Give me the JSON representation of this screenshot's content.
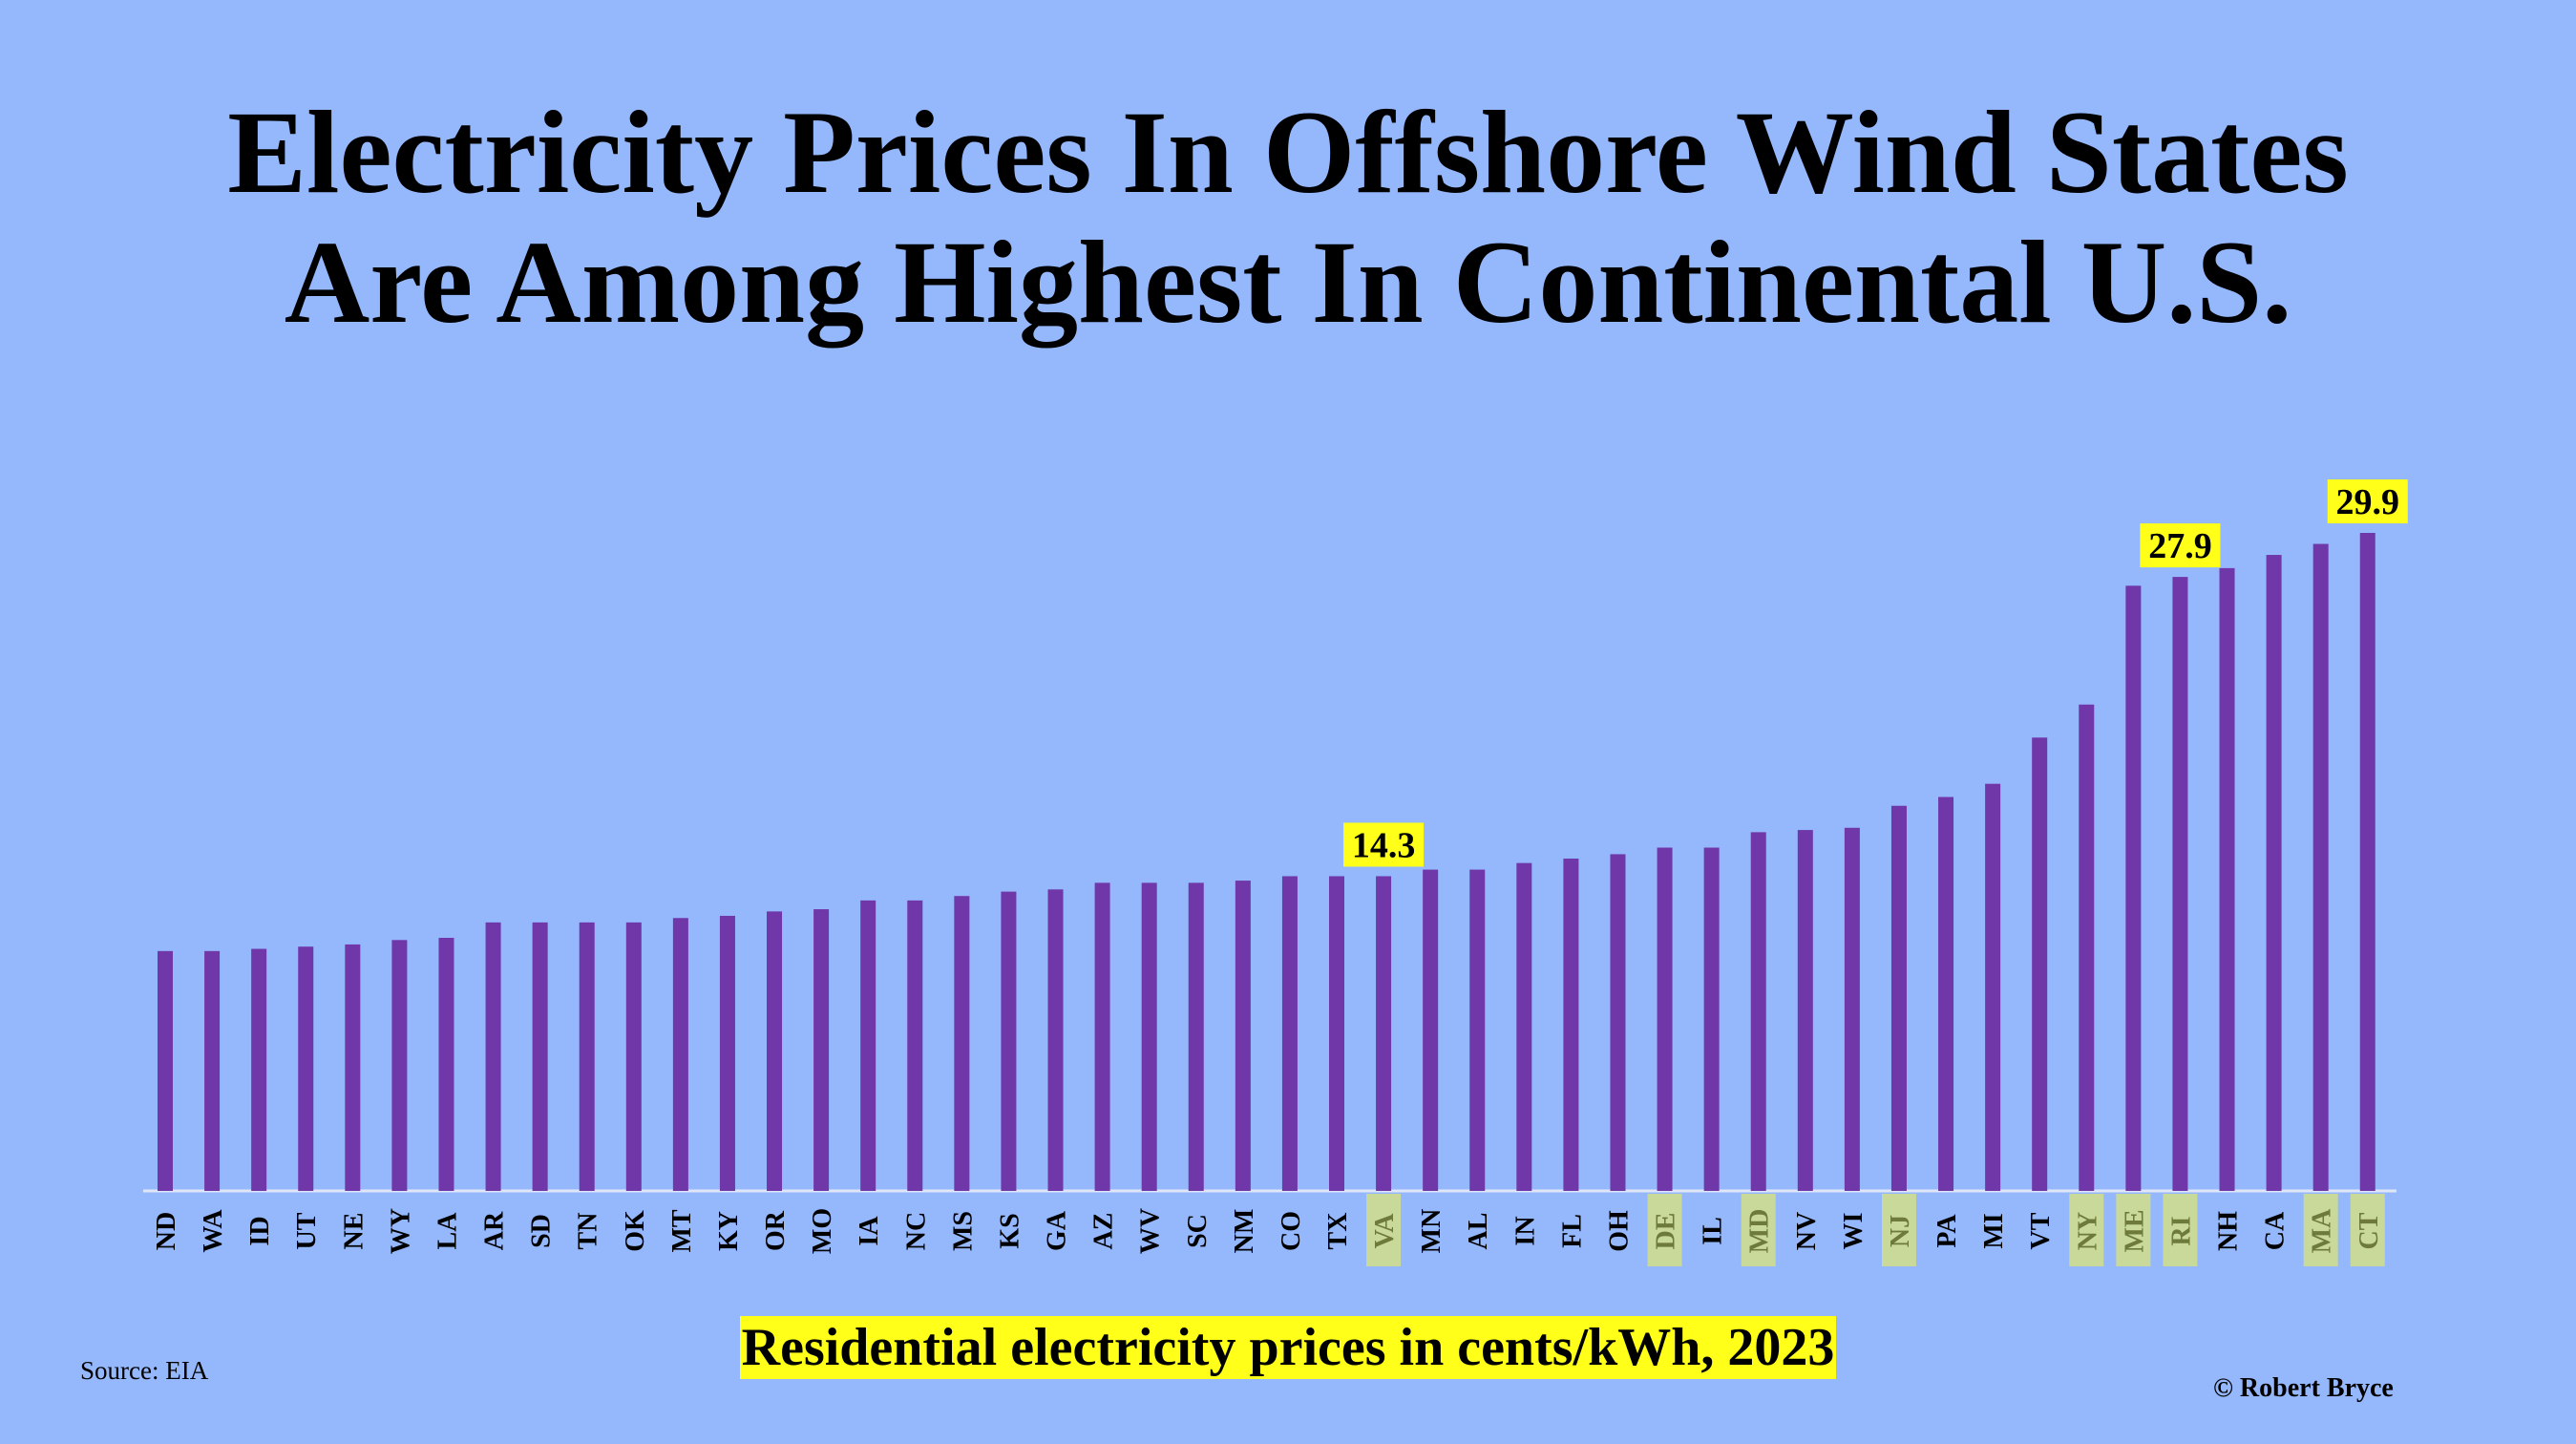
{
  "title_line1": "Electricity Prices In Offshore Wind States",
  "title_line2": "Are Among Highest In Continental U.S.",
  "source": "Source: EIA",
  "credit": "© Robert Bryce",
  "colors": {
    "background": "#95b8fd",
    "bar": "#6f37a8",
    "label_highlight": "#ffff19",
    "offshore_highlight": "#c8d99a",
    "offshore_text": "#6e7a3a",
    "axis": "#dfe6f5"
  },
  "chart_data": {
    "type": "bar",
    "xlabel": "Residential electricity prices in cents/kWh, 2023",
    "ylim": [
      0,
      35
    ],
    "categories": [
      "ND",
      "WA",
      "ID",
      "UT",
      "NE",
      "WY",
      "LA",
      "AR",
      "SD",
      "TN",
      "OK",
      "MT",
      "KY",
      "OR",
      "MO",
      "IA",
      "NC",
      "MS",
      "KS",
      "GA",
      "AZ",
      "WV",
      "SC",
      "NM",
      "CO",
      "TX",
      "VA",
      "MN",
      "AL",
      "IN",
      "FL",
      "OH",
      "DE",
      "IL",
      "MD",
      "NV",
      "WI",
      "NJ",
      "PA",
      "MI",
      "VT",
      "NY",
      "ME",
      "RI",
      "NH",
      "CA",
      "MA",
      "CT"
    ],
    "values": [
      10.9,
      10.9,
      11.0,
      11.1,
      11.2,
      11.4,
      11.5,
      12.2,
      12.2,
      12.2,
      12.2,
      12.4,
      12.5,
      12.7,
      12.8,
      13.2,
      13.2,
      13.4,
      13.6,
      13.7,
      14.0,
      14.0,
      14.0,
      14.1,
      14.3,
      14.3,
      14.3,
      14.6,
      14.6,
      14.9,
      15.1,
      15.3,
      15.6,
      15.6,
      16.3,
      16.4,
      16.5,
      17.5,
      17.9,
      18.5,
      20.6,
      22.1,
      27.5,
      27.9,
      28.3,
      28.9,
      29.4,
      29.9
    ],
    "offshore_wind_states": [
      "VA",
      "DE",
      "MD",
      "NJ",
      "NY",
      "ME",
      "RI",
      "MA",
      "CT"
    ],
    "data_labels": [
      {
        "state": "VA",
        "text": "14.3"
      },
      {
        "state": "RI",
        "text": "27.9"
      },
      {
        "state": "CT",
        "text": "29.9"
      }
    ]
  }
}
